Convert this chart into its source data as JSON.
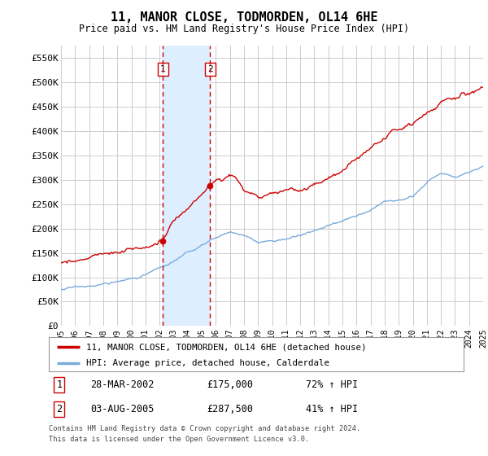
{
  "title": "11, MANOR CLOSE, TODMORDEN, OL14 6HE",
  "subtitle": "Price paid vs. HM Land Registry's House Price Index (HPI)",
  "legend_line1": "11, MANOR CLOSE, TODMORDEN, OL14 6HE (detached house)",
  "legend_line2": "HPI: Average price, detached house, Calderdale",
  "footnote1": "Contains HM Land Registry data © Crown copyright and database right 2024.",
  "footnote2": "This data is licensed under the Open Government Licence v3.0.",
  "sale1_date": "28-MAR-2002",
  "sale1_price": 175000,
  "sale1_label": "72% ↑ HPI",
  "sale2_date": "03-AUG-2005",
  "sale2_price": 287500,
  "sale2_label": "41% ↑ HPI",
  "red_color": "#cc0000",
  "blue_color": "#7aaadd",
  "highlight_color": "#ddeeff",
  "annotation_box_edge": "#cc0000",
  "background_color": "#ffffff",
  "grid_color": "#cccccc",
  "ylim": [
    0,
    575000
  ],
  "yticks": [
    0,
    50000,
    100000,
    150000,
    200000,
    250000,
    300000,
    350000,
    400000,
    450000,
    500000,
    550000
  ],
  "year_start": 1995,
  "year_end": 2025,
  "sale1_year": 2002.23,
  "sale2_year": 2005.58
}
